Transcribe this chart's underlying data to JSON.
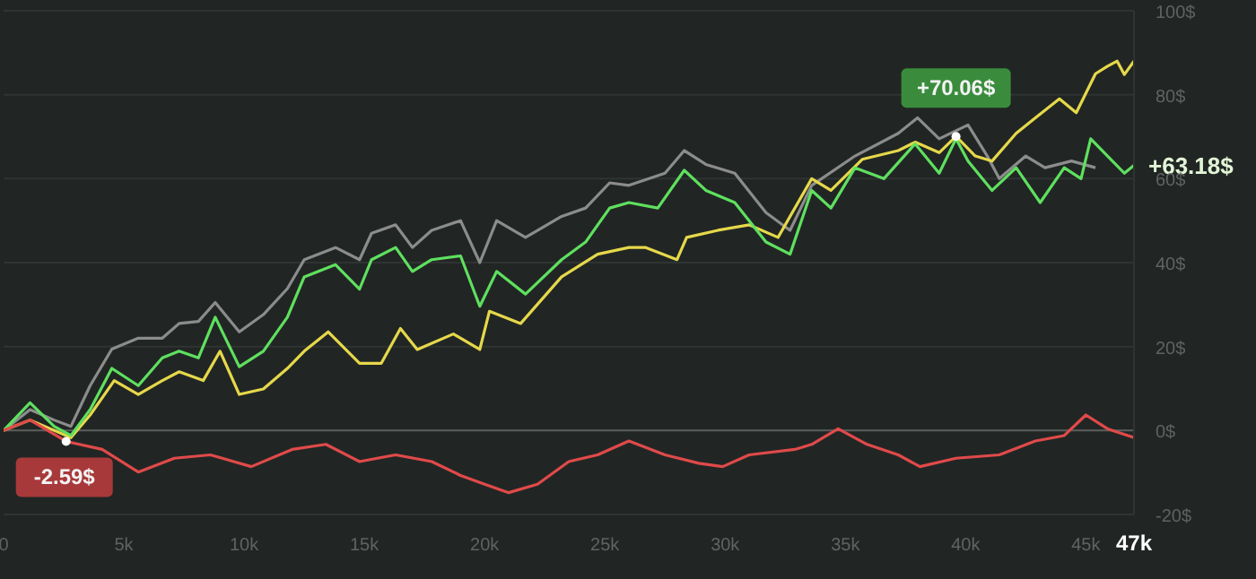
{
  "chart_data": {
    "type": "line",
    "xlim": [
      0,
      47000
    ],
    "xticks": [
      0,
      {
        "value": 5000,
        "label": "5k"
      },
      {
        "value": 10000,
        "label": "10k"
      },
      {
        "value": 15000,
        "label": "15k"
      },
      {
        "value": 20000,
        "label": "20k"
      },
      {
        "value": 25000,
        "label": "25k"
      },
      {
        "value": 30000,
        "label": "30k"
      },
      {
        "value": 35000,
        "label": "35k"
      },
      {
        "value": 40000,
        "label": "40k"
      },
      {
        "value": 45000,
        "label": "45k"
      },
      {
        "value": 47000,
        "label": "47k"
      }
    ],
    "ylim": [
      -20,
      100
    ],
    "yticks": [
      {
        "value": -20,
        "label": "-20$"
      },
      {
        "value": 0,
        "label": "0$"
      },
      {
        "value": 20,
        "label": "20$"
      },
      {
        "value": 40,
        "label": "40$"
      },
      {
        "value": 60,
        "label": "60$"
      },
      {
        "value": 80,
        "label": "80$"
      },
      {
        "value": 100,
        "label": "100$"
      }
    ],
    "grid": "y",
    "legend": false,
    "marker": "none",
    "line_style": "solid",
    "ref_lines": [
      {
        "axis": "y",
        "value": 0,
        "color": "#5a5e5c"
      }
    ],
    "annotations": [
      {
        "text": "+70.06$",
        "x": 39600,
        "y": 70.06
      },
      {
        "text": "+63.18$",
        "x": 47000,
        "y": 63.18
      },
      {
        "text": "-2.59$",
        "x": 2600,
        "y": -2.59
      }
    ],
    "series": [
      {
        "color": "#8c8c8c",
        "x": [
          0,
          1100,
          2100,
          2800,
          3600,
          4500,
          5600,
          6600,
          7300,
          8100,
          8800,
          9800,
          10800,
          11800,
          12500,
          13800,
          14800,
          15300,
          16300,
          17000,
          17800,
          19000,
          19800,
          20500,
          21700,
          23200,
          24200,
          25200,
          26000,
          27500,
          28300,
          29200,
          30400,
          31700,
          32700,
          33600,
          35400,
          37200,
          38000,
          38900,
          40100,
          40900,
          41400,
          42500,
          43300,
          44400,
          45400
        ],
        "values": [
          0,
          5,
          2.5,
          1,
          10.7,
          19.4,
          22,
          22,
          25.5,
          26,
          30.5,
          23.5,
          27.6,
          33.8,
          40.7,
          43.6,
          40.7,
          47,
          49,
          43.6,
          47.7,
          50,
          40,
          50,
          46,
          51,
          53,
          59,
          58.4,
          61.3,
          66.7,
          63.4,
          61.3,
          51.9,
          47.7,
          58.4,
          65.4,
          70.8,
          74.5,
          69.5,
          72.8,
          65.4,
          60,
          65.4,
          62.6,
          64.2,
          62.6
        ]
      },
      {
        "color": "#e6d84a",
        "x": [
          0,
          1100,
          2800,
          3600,
          4600,
          5600,
          6600,
          7300,
          8300,
          9000,
          9800,
          10800,
          11800,
          12500,
          13500,
          14800,
          15700,
          16500,
          17200,
          18700,
          19800,
          20200,
          21500,
          23200,
          24700,
          26000,
          26700,
          28000,
          28400,
          29700,
          31000,
          32200,
          33600,
          34400,
          35700,
          37200,
          37900,
          38900,
          39600,
          40400,
          41100,
          42100,
          42900,
          43900,
          44600,
          45400,
          45900,
          46300,
          46600,
          47000
        ],
        "values": [
          0,
          2.5,
          -1.7,
          3.7,
          11.9,
          8.6,
          11.9,
          14,
          11.9,
          18.9,
          8.6,
          9.9,
          14.8,
          18.9,
          23.5,
          16,
          16,
          24.3,
          19.3,
          23,
          19.3,
          28.4,
          25.5,
          36.6,
          42,
          43.6,
          43.6,
          40.7,
          46,
          47.7,
          49,
          46,
          60,
          57.2,
          64.6,
          66.7,
          68.7,
          66.2,
          70.06,
          65.4,
          64.2,
          70.8,
          74.5,
          79,
          75.7,
          85,
          86.8,
          88,
          84.8,
          88
        ]
      },
      {
        "color": "#5fe05f",
        "x": [
          0,
          1100,
          2100,
          2800,
          3600,
          4500,
          5600,
          6600,
          7300,
          8100,
          8800,
          9800,
          10800,
          11800,
          12500,
          13800,
          14800,
          15300,
          16300,
          17000,
          17800,
          19000,
          19800,
          20500,
          21700,
          23200,
          24200,
          25200,
          26000,
          27200,
          28300,
          29200,
          30400,
          31700,
          32700,
          33600,
          34400,
          35400,
          36600,
          37900,
          38900,
          39600,
          40100,
          41100,
          42100,
          43100,
          44100,
          44800,
          45200,
          45900,
          46600,
          47000
        ],
        "values": [
          0,
          6.6,
          1,
          -1.2,
          5,
          14.8,
          10.7,
          17.3,
          18.9,
          17.3,
          27,
          15.2,
          18.9,
          27,
          36.6,
          39.5,
          33.7,
          40.7,
          43.6,
          37.9,
          40.7,
          41.6,
          29.6,
          37.9,
          32.5,
          40.7,
          44.9,
          53,
          54.3,
          53,
          62,
          57.2,
          54.3,
          44.9,
          42,
          57.2,
          53,
          62.6,
          60,
          68.3,
          61.3,
          69.5,
          64.2,
          57.2,
          62.6,
          54.3,
          62.6,
          60,
          69.5,
          65.4,
          61.3,
          63.18
        ]
      },
      {
        "color": "#e04a4a",
        "x": [
          0,
          1100,
          2600,
          4100,
          5600,
          7100,
          8600,
          10300,
          12000,
          13400,
          14800,
          16300,
          17800,
          19000,
          20000,
          21000,
          22200,
          23500,
          24700,
          26000,
          27500,
          28900,
          29900,
          31000,
          32900,
          33600,
          34700,
          35900,
          37200,
          38100,
          39600,
          41400,
          42900,
          44100,
          45000,
          45900,
          47000
        ],
        "values": [
          0,
          2.5,
          -2.59,
          -4.5,
          -9.9,
          -6.6,
          -5.8,
          -8.6,
          -4.5,
          -3.3,
          -7.4,
          -5.8,
          -7.4,
          -10.7,
          -12.8,
          -14.8,
          -12.8,
          -7.4,
          -5.8,
          -2.5,
          -5.8,
          -7.8,
          -8.6,
          -5.8,
          -4.5,
          -3.3,
          0.4,
          -3.3,
          -5.8,
          -8.6,
          -6.6,
          -5.8,
          -2.5,
          -1.2,
          3.7,
          0.4,
          -1.7
        ]
      }
    ]
  }
}
